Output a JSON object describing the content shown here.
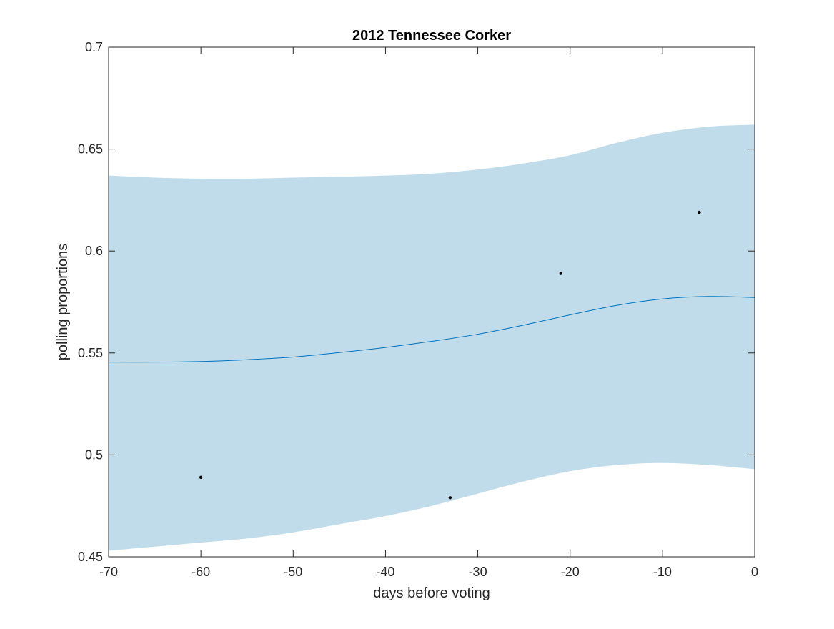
{
  "chart_data": {
    "type": "line",
    "title": "2012 Tennessee Corker",
    "xlabel": "days before voting",
    "ylabel": "polling proportions",
    "xlim": [
      -70,
      0
    ],
    "ylim": [
      0.45,
      0.7
    ],
    "grid": false,
    "legend": "none",
    "xticks": [
      -70,
      -60,
      -50,
      -40,
      -30,
      -20,
      -10,
      0
    ],
    "xtick_labels": [
      "-70",
      "-60",
      "-50",
      "-40",
      "-30",
      "-20",
      "-10",
      "0"
    ],
    "yticks": [
      0.45,
      0.5,
      0.55,
      0.6,
      0.65,
      0.7
    ],
    "ytick_labels": [
      "0.45",
      "0.5",
      "0.55",
      "0.6",
      "0.65",
      "0.7"
    ],
    "series": [
      {
        "type": "band",
        "color": "#c0dcea",
        "x": [
          -70,
          -65,
          -60,
          -55,
          -50,
          -45,
          -40,
          -35,
          -30,
          -25,
          -20,
          -15,
          -10,
          -5,
          0
        ],
        "lower": [
          0.453,
          0.455,
          0.457,
          0.459,
          0.462,
          0.466,
          0.47,
          0.475,
          0.481,
          0.487,
          0.492,
          0.495,
          0.496,
          0.495,
          0.493
        ],
        "upper": [
          0.637,
          0.636,
          0.6355,
          0.6355,
          0.636,
          0.6365,
          0.637,
          0.638,
          0.64,
          0.643,
          0.647,
          0.653,
          0.658,
          0.661,
          0.662
        ]
      },
      {
        "type": "line",
        "color": "#0072bd",
        "x": [
          -70,
          -65,
          -60,
          -55,
          -50,
          -45,
          -40,
          -35,
          -30,
          -25,
          -20,
          -15,
          -10,
          -5,
          0
        ],
        "y": [
          0.5455,
          0.5455,
          0.5458,
          0.5467,
          0.548,
          0.5502,
          0.5527,
          0.5557,
          0.5592,
          0.5637,
          0.5687,
          0.5733,
          0.5765,
          0.5777,
          0.5772
        ]
      },
      {
        "type": "scatter",
        "color": "#000000",
        "x": [
          -60,
          -33,
          -21,
          -6
        ],
        "y": [
          0.489,
          0.479,
          0.589,
          0.619
        ]
      }
    ]
  }
}
